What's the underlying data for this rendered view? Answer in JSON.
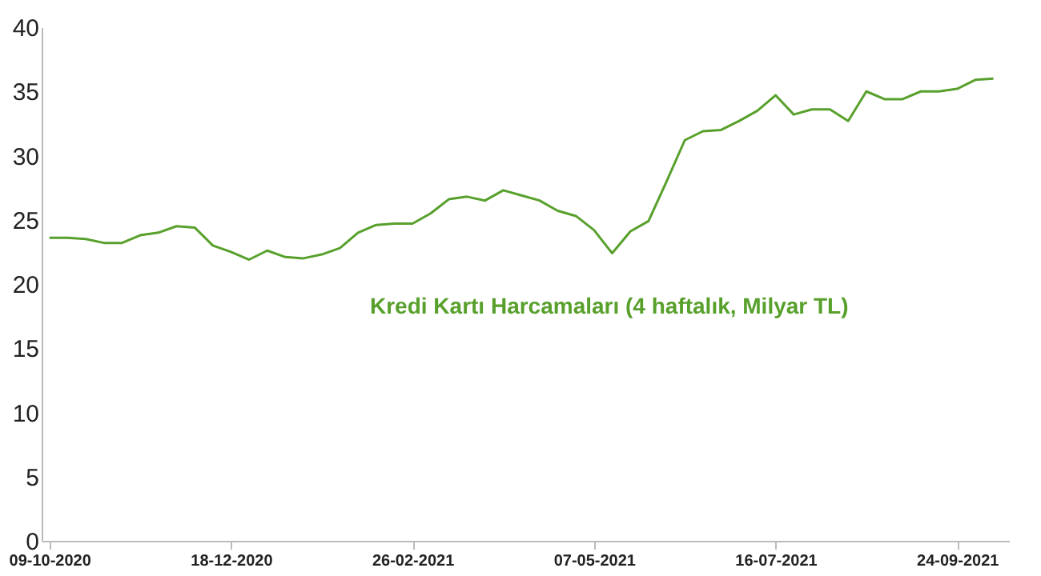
{
  "chart_data": {
    "type": "line",
    "x": [
      "2020-10-09",
      "2020-10-16",
      "2020-10-23",
      "2020-10-30",
      "2020-11-06",
      "2020-11-13",
      "2020-11-20",
      "2020-11-27",
      "2020-12-04",
      "2020-12-11",
      "2020-12-18",
      "2020-12-25",
      "2021-01-01",
      "2021-01-08",
      "2021-01-15",
      "2021-01-22",
      "2021-01-29",
      "2021-02-05",
      "2021-02-12",
      "2021-02-19",
      "2021-02-26",
      "2021-03-05",
      "2021-03-12",
      "2021-03-19",
      "2021-03-26",
      "2021-04-02",
      "2021-04-09",
      "2021-04-16",
      "2021-04-23",
      "2021-04-30",
      "2021-05-07",
      "2021-05-14",
      "2021-05-21",
      "2021-05-28",
      "2021-06-04",
      "2021-06-11",
      "2021-06-18",
      "2021-06-25",
      "2021-07-02",
      "2021-07-09",
      "2021-07-16",
      "2021-07-23",
      "2021-07-30",
      "2021-08-06",
      "2021-08-13",
      "2021-08-20",
      "2021-08-27",
      "2021-09-03",
      "2021-09-10",
      "2021-09-17",
      "2021-09-24",
      "2021-10-01",
      "2021-10-08"
    ],
    "series": [
      {
        "name": "Kredi Kartı Harcamaları (4 haftalık, Milyar TL)",
        "color": "#58a02c",
        "values": [
          23.6,
          23.6,
          23.5,
          23.2,
          23.2,
          23.8,
          24.0,
          24.5,
          24.4,
          23.0,
          22.5,
          21.9,
          22.6,
          22.1,
          22.0,
          22.3,
          22.8,
          24.0,
          24.6,
          24.7,
          24.7,
          25.5,
          26.6,
          26.8,
          26.5,
          27.3,
          26.9,
          26.5,
          25.7,
          25.3,
          24.2,
          22.4,
          24.1,
          24.9,
          28.0,
          31.2,
          31.9,
          32.0,
          32.7,
          33.5,
          34.7,
          33.2,
          33.6,
          33.6,
          32.7,
          35.0,
          34.4,
          34.4,
          35.0,
          35.0,
          35.2,
          35.9,
          36.0
        ]
      }
    ],
    "xlim": [
      "2020-10-06",
      "2021-10-14"
    ],
    "xticks": [
      {
        "value": "2020-10-09",
        "label": "09-10-2020"
      },
      {
        "value": "2020-12-18",
        "label": "18-12-2020"
      },
      {
        "value": "2021-02-26",
        "label": "26-02-2021"
      },
      {
        "value": "2021-05-07",
        "label": "07-05-2021"
      },
      {
        "value": "2021-07-16",
        "label": "16-07-2021"
      },
      {
        "value": "2021-09-24",
        "label": "24-09-2021"
      }
    ],
    "ylim": [
      0,
      40
    ],
    "yticks": [
      0,
      5,
      10,
      15,
      20,
      25,
      30,
      35,
      40
    ],
    "grid": false,
    "marker": "none",
    "line_style": "solid"
  }
}
